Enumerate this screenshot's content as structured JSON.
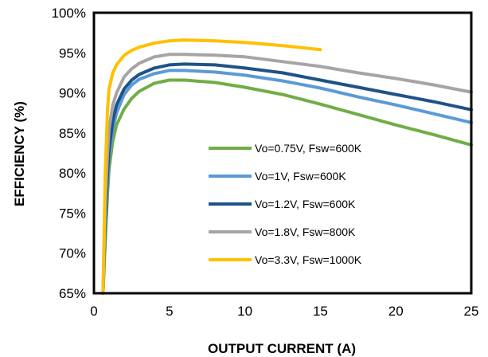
{
  "chart_data": {
    "type": "line",
    "xlabel": "OUTPUT CURRENT (A)",
    "ylabel": "EFFICIENCY (%)",
    "xlim": [
      0,
      25
    ],
    "ylim": [
      65,
      100
    ],
    "x_ticks": [
      "0",
      "5",
      "10",
      "15",
      "20",
      "25"
    ],
    "y_ticks": [
      "65%",
      "70%",
      "75%",
      "80%",
      "85%",
      "90%",
      "95%",
      "100%"
    ],
    "grid": false,
    "legend_position": "bottom-right inside plot",
    "series": [
      {
        "name": "Vo=0.75V, Fsw=600K",
        "color": "#70AD47",
        "x": [
          0.6,
          0.75,
          0.9,
          1.0,
          1.25,
          1.5,
          2.0,
          2.5,
          3.0,
          4.0,
          5.0,
          6.0,
          8.0,
          10.0,
          12.5,
          15.0,
          17.5,
          20.0,
          22.5,
          25.0
        ],
        "y": [
          65.0,
          71.5,
          77.5,
          80.5,
          84.0,
          86.0,
          88.0,
          89.3,
          90.2,
          91.2,
          91.6,
          91.6,
          91.3,
          90.7,
          89.8,
          88.6,
          87.3,
          86.0,
          84.8,
          83.5
        ]
      },
      {
        "name": "Vo=1V, Fsw=600K",
        "color": "#5B9BD5",
        "x": [
          0.6,
          0.75,
          0.9,
          1.0,
          1.25,
          1.5,
          2.0,
          2.5,
          3.0,
          4.0,
          5.0,
          6.0,
          8.0,
          10.0,
          12.5,
          15.0,
          17.5,
          20.0,
          22.5,
          25.0
        ],
        "y": [
          65.0,
          73.0,
          79.0,
          82.0,
          85.5,
          87.5,
          89.8,
          91.0,
          91.7,
          92.4,
          92.8,
          92.8,
          92.6,
          92.2,
          91.5,
          90.6,
          89.5,
          88.5,
          87.4,
          86.3
        ]
      },
      {
        "name": "Vo=1.2V, Fsw=600K",
        "color": "#1F5287",
        "x": [
          0.6,
          0.75,
          0.9,
          1.0,
          1.25,
          1.5,
          2.0,
          2.5,
          3.0,
          4.0,
          5.0,
          6.0,
          8.0,
          10.0,
          12.5,
          15.0,
          17.5,
          20.0,
          22.5,
          25.0
        ],
        "y": [
          65.0,
          74.0,
          80.0,
          83.0,
          86.5,
          88.5,
          90.5,
          91.6,
          92.3,
          93.1,
          93.5,
          93.6,
          93.5,
          93.1,
          92.5,
          91.6,
          90.7,
          89.8,
          88.9,
          87.9
        ]
      },
      {
        "name": "Vo=1.8V, Fsw=800K",
        "color": "#A5A5A5",
        "x": [
          0.6,
          0.75,
          0.9,
          1.0,
          1.25,
          1.5,
          2.0,
          2.5,
          3.0,
          4.0,
          5.0,
          6.0,
          8.0,
          10.0,
          12.5,
          15.0,
          17.5,
          20.0,
          22.5,
          25.0
        ],
        "y": [
          65.0,
          76.0,
          82.5,
          85.5,
          88.5,
          90.0,
          92.0,
          93.0,
          93.7,
          94.5,
          94.8,
          94.8,
          94.7,
          94.5,
          93.9,
          93.3,
          92.5,
          91.8,
          91.0,
          90.1
        ]
      },
      {
        "name": "Vo=3.3V, Fsw=1000K",
        "color": "#FFC000",
        "x": [
          0.6,
          0.75,
          0.9,
          1.0,
          1.25,
          1.5,
          2.0,
          2.5,
          3.0,
          4.0,
          5.0,
          6.0,
          8.0,
          10.0,
          12.5,
          15.0
        ],
        "y": [
          65.0,
          80.0,
          88.0,
          90.5,
          92.5,
          93.5,
          94.7,
          95.3,
          95.7,
          96.2,
          96.5,
          96.6,
          96.5,
          96.3,
          95.9,
          95.4
        ]
      }
    ]
  }
}
